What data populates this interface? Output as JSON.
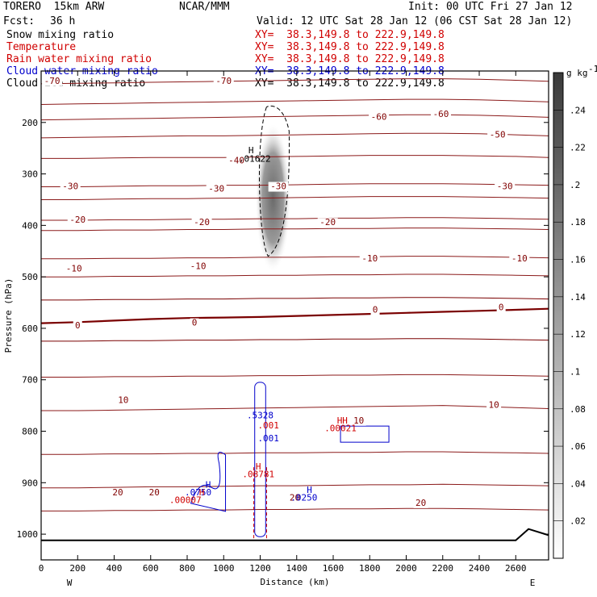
{
  "header": {
    "model": "TORERO  15km ARW",
    "center": "NCAR/MMM",
    "init": "Init: 00 UTC Fri 27 Jan 12",
    "fcst_label": "Fcst:",
    "fcst_value": "36 h",
    "valid": "Valid: 12 UTC Sat 28 Jan 12 (06 CST Sat 28 Jan 12)"
  },
  "legend": [
    {
      "label": "Snow mixing ratio",
      "xy": "XY=  38.3,149.8 to 222.9,149.8",
      "color": "#000000"
    },
    {
      "label": "Temperature",
      "xy": "XY=  38.3,149.8 to 222.9,149.8",
      "color": "#d00000"
    },
    {
      "label": "Rain water mixing ratio",
      "xy": "XY=  38.3,149.8 to 222.9,149.8",
      "color": "#d00000"
    },
    {
      "label": "Cloud water mixing ratio",
      "xy": "XY=  38.3,149.8 to 222.9,149.8",
      "color": "#0000cc"
    },
    {
      "label": "Cloud ice mixing ratio",
      "xy": "XY=  38.3,149.8 to 222.9,149.8",
      "color": "#000000"
    }
  ],
  "chart_data": {
    "type": "heatmap",
    "title": "",
    "xlabel": "Distance (km)",
    "ylabel": "Pressure (hPa)",
    "xlim": [
      0,
      2780
    ],
    "ylim": [
      1050,
      100
    ],
    "x_ticks": [
      0,
      200,
      400,
      600,
      800,
      1000,
      1200,
      1400,
      1600,
      1800,
      2000,
      2200,
      2400,
      2600
    ],
    "y_ticks": [
      200,
      300,
      400,
      500,
      600,
      700,
      800,
      900,
      1000
    ],
    "x_end_labels": {
      "left": "W",
      "right": "E"
    },
    "colorbar": {
      "unit": "g kg",
      "unit_exp": "-1",
      "ticks": [
        ".02",
        ".04",
        ".06",
        ".08",
        ".1",
        ".12",
        ".14",
        ".16",
        ".18",
        ".2",
        ".22",
        ".24"
      ],
      "min": 0,
      "max": 0.26
    },
    "temperature_contours": [
      {
        "value": -70,
        "pressures": [
          165,
          164,
          163,
          162,
          161,
          160,
          159,
          158,
          157,
          156,
          155,
          155,
          156,
          158,
          160
        ]
      },
      {
        "value": -70,
        "pressures": [
          125,
          124,
          123,
          122,
          121,
          120,
          119,
          118,
          117,
          116,
          115,
          115,
          116,
          118,
          120
        ]
      },
      {
        "value": -60,
        "pressures": [
          195,
          194,
          193,
          192,
          191,
          190,
          189,
          188,
          187,
          186,
          185,
          185,
          186,
          188,
          190
        ]
      },
      {
        "value": -50,
        "pressures": [
          230,
          229,
          228,
          227,
          226,
          226,
          225,
          224,
          223,
          222,
          221,
          221,
          222,
          224,
          226
        ]
      },
      {
        "value": -40,
        "pressures": [
          270,
          270,
          269,
          268,
          268,
          268,
          267,
          266,
          265,
          264,
          264,
          264,
          265,
          266,
          268
        ]
      },
      {
        "value": -30,
        "pressures": [
          325,
          325,
          324,
          323,
          323,
          322,
          322,
          321,
          320,
          319,
          319,
          319,
          320,
          321,
          322
        ]
      },
      {
        "value": -30,
        "pressures": [
          350,
          350,
          349,
          348,
          348,
          347,
          347,
          346,
          345,
          344,
          344,
          344,
          345,
          346,
          347
        ]
      },
      {
        "value": -20,
        "pressures": [
          390,
          390,
          389,
          389,
          388,
          388,
          387,
          387,
          386,
          386,
          385,
          385,
          386,
          387,
          388
        ]
      },
      {
        "value": -20,
        "pressures": [
          410,
          410,
          409,
          409,
          408,
          408,
          407,
          407,
          406,
          406,
          405,
          405,
          406,
          407,
          408
        ]
      },
      {
        "value": -10,
        "pressures": [
          465,
          465,
          464,
          464,
          463,
          463,
          462,
          462,
          461,
          461,
          460,
          460,
          461,
          462,
          463
        ]
      },
      {
        "value": -10,
        "pressures": [
          500,
          500,
          499,
          499,
          498,
          498,
          497,
          497,
          496,
          496,
          495,
          495,
          496,
          497,
          498
        ]
      },
      {
        "value": 0,
        "pressures": [
          590,
          588,
          585,
          582,
          580,
          579,
          578,
          576,
          574,
          572,
          570,
          568,
          566,
          564,
          562
        ]
      },
      {
        "value": 0,
        "pressures": [
          545,
          545,
          544,
          544,
          543,
          543,
          542,
          542,
          541,
          541,
          540,
          540,
          541,
          542,
          543
        ]
      },
      {
        "value": 0,
        "pressures": [
          625,
          625,
          624,
          624,
          623,
          623,
          622,
          622,
          621,
          621,
          620,
          620,
          621,
          622,
          623
        ]
      },
      {
        "value": 10,
        "pressures": [
          695,
          695,
          694,
          694,
          693,
          693,
          692,
          692,
          691,
          691,
          690,
          690,
          691,
          692,
          693
        ]
      },
      {
        "value": 10,
        "pressures": [
          760,
          760,
          759,
          758,
          757,
          756,
          755,
          754,
          753,
          752,
          751,
          750,
          752,
          754,
          756
        ]
      },
      {
        "value": 10,
        "pressures": [
          845,
          845,
          844,
          844,
          843,
          843,
          842,
          842,
          841,
          841,
          840,
          840,
          841,
          842,
          843
        ]
      },
      {
        "value": 20,
        "pressures": [
          910,
          910,
          909,
          908,
          908,
          907,
          906,
          906,
          905,
          904,
          904,
          903,
          904,
          905,
          906
        ]
      },
      {
        "value": 20,
        "pressures": [
          955,
          955,
          954,
          954,
          953,
          953,
          952,
          952,
          951,
          951,
          950,
          950,
          951,
          952,
          953
        ]
      }
    ],
    "contour_x": [
      0,
      200,
      400,
      600,
      800,
      1000,
      1200,
      1400,
      1600,
      1800,
      2000,
      2200,
      2400,
      2600,
      2780
    ],
    "snow_core": {
      "x_center": 1270,
      "p_top": 170,
      "p_bottom": 460,
      "max": 0.26
    },
    "labels": [
      {
        "text": "-70",
        "x": 60,
        "p": 120,
        "color": "#800000"
      },
      {
        "text": "-70",
        "x": 1000,
        "p": 120,
        "color": "#800000"
      },
      {
        "text": "-60",
        "x": 1850,
        "p": 190,
        "color": "#800000"
      },
      {
        "text": "-60",
        "x": 2190,
        "p": 185,
        "color": "#800000"
      },
      {
        "text": "-50",
        "x": 2500,
        "p": 225,
        "color": "#800000"
      },
      {
        "text": "-40",
        "x": 1070,
        "p": 275,
        "color": "#800000"
      },
      {
        "text": "-30",
        "x": 160,
        "p": 325,
        "color": "#800000"
      },
      {
        "text": "-30",
        "x": 960,
        "p": 330,
        "color": "#800000"
      },
      {
        "text": "-30",
        "x": 1300,
        "p": 325,
        "color": "#800000"
      },
      {
        "text": "-30",
        "x": 2540,
        "p": 325,
        "color": "#800000"
      },
      {
        "text": "-20",
        "x": 200,
        "p": 390,
        "color": "#800000"
      },
      {
        "text": "-20",
        "x": 880,
        "p": 395,
        "color": "#800000"
      },
      {
        "text": "-20",
        "x": 1570,
        "p": 395,
        "color": "#800000"
      },
      {
        "text": "-10",
        "x": 1800,
        "p": 465,
        "color": "#800000"
      },
      {
        "text": "-10",
        "x": 2620,
        "p": 465,
        "color": "#800000"
      },
      {
        "text": "-10",
        "x": 860,
        "p": 480,
        "color": "#800000"
      },
      {
        "text": "-10",
        "x": 180,
        "p": 485,
        "color": "#800000"
      },
      {
        "text": "0",
        "x": 1830,
        "p": 565,
        "color": "#800000"
      },
      {
        "text": "0",
        "x": 2520,
        "p": 560,
        "color": "#800000"
      },
      {
        "text": "0",
        "x": 200,
        "p": 595,
        "color": "#800000"
      },
      {
        "text": "0",
        "x": 840,
        "p": 590,
        "color": "#800000"
      },
      {
        "text": "10",
        "x": 450,
        "p": 740,
        "color": "#800000"
      },
      {
        "text": "10",
        "x": 2480,
        "p": 750,
        "color": "#800000"
      },
      {
        "text": "10",
        "x": 1740,
        "p": 780,
        "color": "#800000"
      },
      {
        "text": "20",
        "x": 420,
        "p": 920,
        "color": "#800000"
      },
      {
        "text": "20",
        "x": 620,
        "p": 920,
        "color": "#800000"
      },
      {
        "text": "20",
        "x": 1390,
        "p": 930,
        "color": "#800000"
      },
      {
        "text": "20",
        "x": 2080,
        "p": 940,
        "color": "#800000"
      },
      {
        "text": "H",
        "x": 1150,
        "p": 255,
        "color": "#000000"
      },
      {
        "text": ".01622",
        "x": 1170,
        "p": 272,
        "color": "#000000"
      },
      {
        "text": "H",
        "x": 1190,
        "p": 870,
        "color": "#d00000"
      },
      {
        "text": ".08781",
        "x": 1190,
        "p": 885,
        "color": "#d00000"
      },
      {
        "text": ".5328",
        "x": 1200,
        "p": 770,
        "color": "#0000cc"
      },
      {
        "text": ".001",
        "x": 1245,
        "p": 790,
        "color": "#d00000"
      },
      {
        "text": ".001",
        "x": 1245,
        "p": 815,
        "color": "#0000cc"
      },
      {
        "text": "H",
        "x": 915,
        "p": 905,
        "color": "#0000cc"
      },
      {
        "text": ".0750",
        "x": 860,
        "p": 920,
        "color": "#0000cc"
      },
      {
        "text": "H",
        "x": 880,
        "p": 920,
        "color": "#d00000"
      },
      {
        "text": ".00007",
        "x": 790,
        "p": 935,
        "color": "#d00000"
      },
      {
        "text": "H",
        "x": 1470,
        "p": 915,
        "color": "#0000cc"
      },
      {
        "text": ".0250",
        "x": 1440,
        "p": 930,
        "color": "#0000cc"
      },
      {
        "text": "HH",
        "x": 1650,
        "p": 780,
        "color": "#d00000"
      },
      {
        "text": ".00021",
        "x": 1640,
        "p": 795,
        "color": "#d00000"
      }
    ]
  }
}
